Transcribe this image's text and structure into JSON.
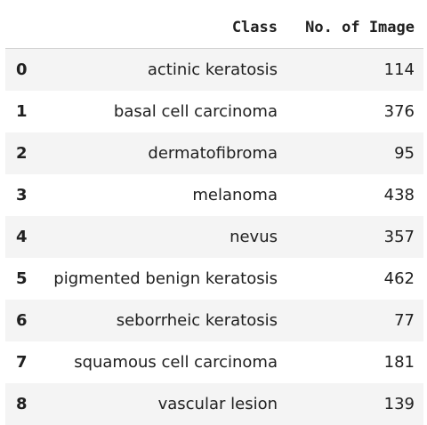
{
  "table": {
    "headers": {
      "index": "",
      "class": "Class",
      "count": "No. of Image"
    },
    "rows": [
      {
        "index": "0",
        "class": "actinic keratosis",
        "count": "114"
      },
      {
        "index": "1",
        "class": "basal cell carcinoma",
        "count": "376"
      },
      {
        "index": "2",
        "class": "dermatofibroma",
        "count": "95"
      },
      {
        "index": "3",
        "class": "melanoma",
        "count": "438"
      },
      {
        "index": "4",
        "class": "nevus",
        "count": "357"
      },
      {
        "index": "5",
        "class": "pigmented benign keratosis",
        "count": "462"
      },
      {
        "index": "6",
        "class": "seborrheic keratosis",
        "count": "77"
      },
      {
        "index": "7",
        "class": "squamous cell carcinoma",
        "count": "181"
      },
      {
        "index": "8",
        "class": "vascular lesion",
        "count": "139"
      }
    ]
  }
}
